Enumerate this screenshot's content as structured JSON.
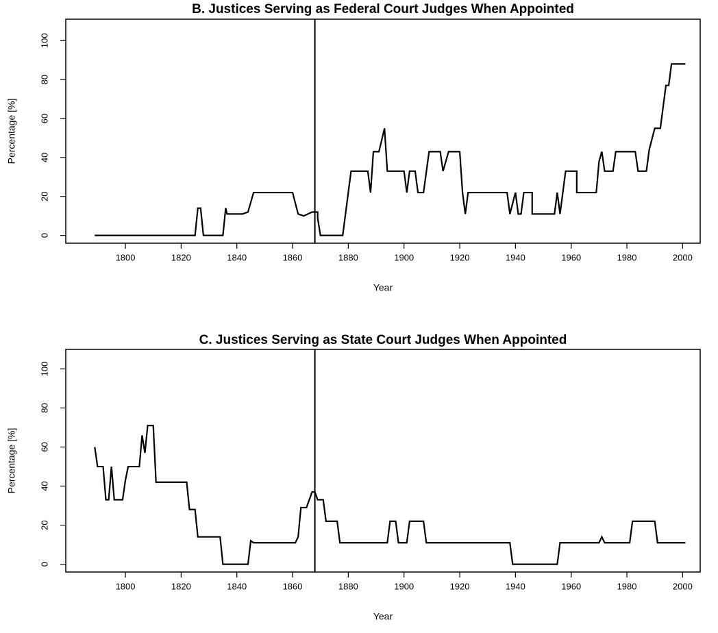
{
  "chart_data": [
    {
      "type": "line",
      "title": "B. Justices Serving as Federal Court Judges When Appointed",
      "x_label": "Year",
      "y_label": "Percentage [%]",
      "x": [
        1789,
        1825,
        1826,
        1827,
        1828,
        1835,
        1836,
        1836.5,
        1842,
        1844,
        1846,
        1860,
        1862,
        1864,
        1867,
        1869,
        1869,
        1870,
        1878,
        1880,
        1881,
        1887,
        1888,
        1889,
        1891,
        1893,
        1894,
        1900,
        1901,
        1902,
        1904,
        1905,
        1907,
        1909,
        1913,
        1914,
        1916,
        1920,
        1921,
        1922,
        1923,
        1937,
        1938,
        1940,
        1941,
        1942,
        1943,
        1946,
        1946,
        1954,
        1955,
        1956,
        1957,
        1958,
        1962,
        1962,
        1969,
        1970,
        1971,
        1972,
        1975,
        1976,
        1983,
        1984,
        1987,
        1988,
        1990,
        1992,
        1993,
        1994,
        1995,
        1996,
        2001
      ],
      "series": [
        {
          "name": "Federal",
          "color": "#000000",
          "values": [
            0,
            0,
            14,
            14,
            0,
            0,
            14,
            11,
            11,
            12,
            22,
            22,
            11,
            10,
            12,
            12,
            9,
            0,
            0,
            22,
            33,
            33,
            22,
            43,
            43,
            55,
            33,
            33,
            22,
            33,
            33,
            22,
            22,
            43,
            43,
            33,
            43,
            43,
            22,
            11,
            22,
            22,
            11,
            22,
            11,
            11,
            22,
            22,
            11,
            11,
            22,
            11,
            22,
            33,
            33,
            22,
            22,
            38,
            43,
            33,
            33,
            43,
            43,
            33,
            33,
            44,
            55,
            55,
            66,
            77,
            77,
            88,
            88
          ]
        }
      ],
      "vline": 1868,
      "xlim": [
        1778.6,
        2006.3
      ],
      "xticks": [
        1800,
        1820,
        1840,
        1860,
        1880,
        1900,
        1920,
        1940,
        1960,
        1980,
        2000
      ],
      "ylim": [
        -4,
        111
      ],
      "yticks": [
        0,
        20,
        40,
        60,
        80,
        100
      ]
    },
    {
      "type": "line",
      "title": "C. Justices Serving as State Court Judges When Appointed",
      "x_label": "Year",
      "y_label": "Percentage [%]",
      "x": [
        1789,
        1790,
        1792,
        1793,
        1794,
        1795,
        1796,
        1799,
        1800,
        1801,
        1805,
        1806,
        1807,
        1808,
        1810,
        1811,
        1822,
        1823,
        1825,
        1826,
        1834,
        1835,
        1844,
        1845,
        1846,
        1861,
        1862,
        1863,
        1865,
        1867,
        1868,
        1869,
        1871,
        1872,
        1876,
        1877,
        1894,
        1895,
        1897,
        1898,
        1901,
        1902,
        1907,
        1908,
        1938,
        1939,
        1955,
        1956,
        1970,
        1971,
        1972,
        1981,
        1982,
        1990,
        1991,
        2001
      ],
      "series": [
        {
          "name": "State",
          "color": "#000000",
          "values": [
            60,
            50,
            50,
            33,
            33,
            50,
            33,
            33,
            43,
            50,
            50,
            66,
            57,
            71,
            71,
            42,
            42,
            28,
            28,
            14,
            14,
            0,
            0,
            12,
            11,
            11,
            14,
            29,
            29,
            37,
            37,
            33,
            33,
            22,
            22,
            11,
            11,
            22,
            22,
            11,
            11,
            22,
            22,
            11,
            11,
            0,
            0,
            11,
            11,
            14,
            11,
            11,
            22,
            22,
            11,
            11
          ]
        }
      ],
      "vline": 1868,
      "xlim": [
        1778.6,
        2006.3
      ],
      "xticks": [
        1800,
        1820,
        1840,
        1860,
        1880,
        1900,
        1920,
        1940,
        1960,
        1980,
        2000
      ],
      "ylim": [
        -4,
        110
      ],
      "yticks": [
        0,
        20,
        40,
        60,
        80,
        100
      ]
    }
  ]
}
